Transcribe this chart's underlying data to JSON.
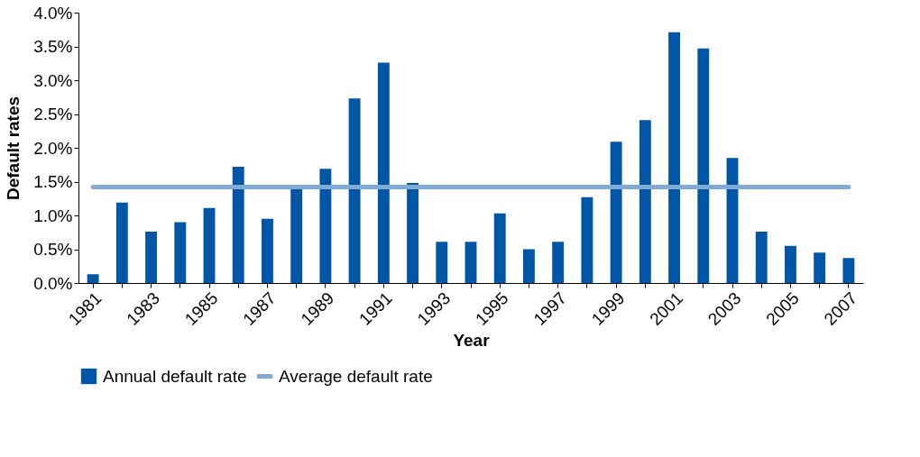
{
  "chart_data": {
    "type": "bar",
    "xlabel": "Year",
    "ylabel": "Default rates",
    "categories": [
      "1981",
      null,
      "1983",
      null,
      "1985",
      null,
      "1987",
      null,
      "1989",
      null,
      "1991",
      null,
      "1993",
      null,
      "1995",
      null,
      "1997",
      null,
      "1999",
      null,
      "2001",
      null,
      "2003",
      null,
      "2005",
      null,
      "2007"
    ],
    "series": [
      {
        "name": "Annual default rate",
        "color": "#0056a6",
        "values": [
          0.13,
          1.19,
          0.76,
          0.9,
          1.11,
          1.72,
          0.95,
          1.4,
          1.69,
          2.73,
          3.26,
          1.48,
          0.61,
          0.61,
          1.03,
          0.5,
          0.61,
          1.27,
          2.09,
          2.41,
          3.71,
          3.47,
          1.85,
          0.76,
          0.55,
          0.45,
          0.37
        ]
      },
      {
        "name": "Average default rate",
        "type": "line",
        "color": "#7fabd4",
        "values": [
          1.42,
          1.42,
          1.42,
          1.42,
          1.42,
          1.42,
          1.42,
          1.42,
          1.42,
          1.42,
          1.42,
          1.42,
          1.42,
          1.42,
          1.42,
          1.42,
          1.42,
          1.42,
          1.42,
          1.42,
          1.42,
          1.42,
          1.42,
          1.42,
          1.42,
          1.42,
          1.42
        ]
      }
    ],
    "ylim": [
      0,
      4
    ],
    "yticks": [
      {
        "value": 0,
        "label": "0.0%"
      },
      {
        "value": 0.5,
        "label": "0.5%"
      },
      {
        "value": 1,
        "label": "1.0%"
      },
      {
        "value": 1.5,
        "label": "1.5%"
      },
      {
        "value": 2,
        "label": "2.0%"
      },
      {
        "value": 2.5,
        "label": "2.5%"
      },
      {
        "value": 3,
        "label": "3.0%"
      },
      {
        "value": 3.5,
        "label": "3.5%"
      },
      {
        "value": 4,
        "label": "4.0%"
      }
    ],
    "grid": false,
    "legend": "bottom",
    "marker": "none"
  }
}
